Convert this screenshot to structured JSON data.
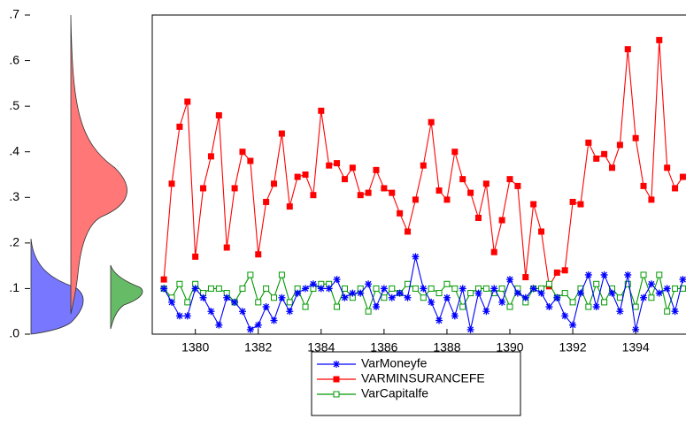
{
  "chart_data": {
    "type": "line",
    "x": [
      1379,
      1379.25,
      1379.5,
      1379.75,
      1380,
      1380.25,
      1380.5,
      1380.75,
      1381,
      1381.25,
      1381.5,
      1381.75,
      1382,
      1382.25,
      1382.5,
      1382.75,
      1383,
      1383.25,
      1383.5,
      1383.75,
      1384,
      1384.25,
      1384.5,
      1384.75,
      1385,
      1385.25,
      1385.5,
      1385.75,
      1386,
      1386.25,
      1386.5,
      1386.75,
      1387,
      1387.25,
      1387.5,
      1387.75,
      1388,
      1388.25,
      1388.5,
      1388.75,
      1389,
      1389.25,
      1389.5,
      1389.75,
      1390,
      1390.25,
      1390.5,
      1390.75,
      1391,
      1391.25,
      1391.5,
      1391.75,
      1392,
      1392.25,
      1392.5,
      1392.75,
      1393,
      1393.25,
      1393.5,
      1393.75,
      1394,
      1394.25,
      1394.5,
      1394.75,
      1395,
      1395.25,
      1395.5
    ],
    "series": [
      {
        "name": "VarMoneyfe",
        "color": "#0000ff",
        "marker": "asterisk",
        "values": [
          0.1,
          0.07,
          0.04,
          0.04,
          0.1,
          0.08,
          0.05,
          0.02,
          0.08,
          0.07,
          0.05,
          0.01,
          0.02,
          0.06,
          0.03,
          0.08,
          0.05,
          0.09,
          0.1,
          0.11,
          0.1,
          0.1,
          0.12,
          0.08,
          0.09,
          0.09,
          0.11,
          0.06,
          0.1,
          0.08,
          0.09,
          0.08,
          0.17,
          0.1,
          0.07,
          0.03,
          0.08,
          0.04,
          0.1,
          0.01,
          0.09,
          0.05,
          0.1,
          0.07,
          0.12,
          0.09,
          0.08,
          0.1,
          0.09,
          0.06,
          0.08,
          0.04,
          0.02,
          0.09,
          0.13,
          0.06,
          0.13,
          0.09,
          0.05,
          0.13,
          0.01,
          0.08,
          0.11,
          0.09,
          0.1,
          0.05,
          0.12
        ]
      },
      {
        "name": "VARMINSURANCEFE",
        "color": "#ff0000",
        "marker": "filled-square",
        "values": [
          0.12,
          0.33,
          0.455,
          0.51,
          0.17,
          0.32,
          0.39,
          0.48,
          0.19,
          0.32,
          0.4,
          0.38,
          0.175,
          0.29,
          0.33,
          0.44,
          0.28,
          0.345,
          0.35,
          0.305,
          0.49,
          0.37,
          0.375,
          0.34,
          0.365,
          0.305,
          0.31,
          0.36,
          0.32,
          0.31,
          0.265,
          0.225,
          0.295,
          0.37,
          0.465,
          0.315,
          0.295,
          0.4,
          0.34,
          0.31,
          0.255,
          0.33,
          0.18,
          0.25,
          0.34,
          0.325,
          0.125,
          0.285,
          0.225,
          0.105,
          0.135,
          0.14,
          0.29,
          0.285,
          0.42,
          0.385,
          0.395,
          0.365,
          0.415,
          0.625,
          0.43,
          0.325,
          0.295,
          0.645,
          0.365,
          0.32,
          0.345
        ]
      },
      {
        "name": "VarCapitalfe",
        "color": "#009900",
        "marker": "hollow-square",
        "values": [
          0.1,
          0.08,
          0.11,
          0.07,
          0.11,
          0.09,
          0.1,
          0.1,
          0.09,
          0.07,
          0.1,
          0.13,
          0.07,
          0.1,
          0.08,
          0.13,
          0.07,
          0.1,
          0.06,
          0.1,
          0.11,
          0.11,
          0.06,
          0.1,
          0.08,
          0.1,
          0.05,
          0.1,
          0.08,
          0.1,
          0.09,
          0.11,
          0.1,
          0.08,
          0.1,
          0.09,
          0.11,
          0.1,
          0.06,
          0.09,
          0.1,
          0.1,
          0.09,
          0.1,
          0.06,
          0.1,
          0.07,
          0.1,
          0.1,
          0.11,
          0.08,
          0.09,
          0.07,
          0.1,
          0.06,
          0.11,
          0.07,
          0.1,
          0.08,
          0.11,
          0.06,
          0.13,
          0.08,
          0.13,
          0.05,
          0.1,
          0.1
        ]
      }
    ],
    "xlim": [
      1378.63,
      1395.6
    ],
    "xticks": [
      1380,
      1382,
      1384,
      1386,
      1388,
      1390,
      1392,
      1394
    ],
    "ylim": [
      0,
      0.7
    ],
    "yticks": [
      {
        "value": 0,
        "label": ".0"
      },
      {
        "value": 0.1,
        "label": ".1"
      },
      {
        "value": 0.2,
        "label": ".2"
      },
      {
        "value": 0.3,
        "label": ".3"
      },
      {
        "value": 0.4,
        "label": ".4"
      },
      {
        "value": 0.5,
        "label": ".5"
      },
      {
        "value": 0.6,
        "label": ".6"
      },
      {
        "value": 0.7,
        "label": ".7"
      }
    ]
  }
}
